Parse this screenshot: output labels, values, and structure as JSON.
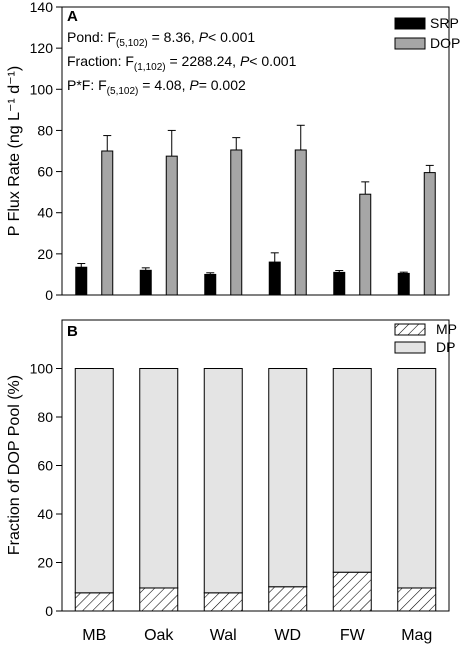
{
  "chart_data": [
    {
      "type": "bar",
      "panel": "A",
      "ylabel": "P Flux Rate (ng L⁻¹ d⁻¹)",
      "ylim": [
        0,
        140
      ],
      "yticks": [
        0,
        20,
        40,
        60,
        80,
        100,
        120,
        140
      ],
      "categories": [
        "MB",
        "Oak",
        "Wal",
        "WD",
        "FW",
        "Mag"
      ],
      "series": [
        {
          "name": "SRP",
          "color": "#000000",
          "values": [
            13.5,
            12,
            10,
            16,
            11,
            10.5
          ],
          "errors": [
            1.8,
            1.2,
            0.8,
            4.5,
            0.9,
            0.6
          ]
        },
        {
          "name": "DOP",
          "color": "#a6a6a6",
          "values": [
            70,
            67.5,
            70.5,
            70.5,
            49,
            59.5
          ],
          "errors": [
            7.5,
            12.5,
            6,
            12,
            6,
            3.5
          ]
        }
      ],
      "legend_position": "top-right",
      "annotations": {
        "pond": {
          "prefix": "Pond: F",
          "sub": "(5,102)",
          "mid": " = 8.36, ",
          "p": "P",
          "suffix": "< 0.001"
        },
        "fraction": {
          "prefix": "Fraction: F",
          "sub": "(1,102)",
          "mid": " = 2288.24, ",
          "p": "P",
          "suffix": "< 0.001"
        },
        "interaction": {
          "prefix": "P*F: F",
          "sub": "(5,102)",
          "mid": " = 4.08, ",
          "p": "P",
          "suffix": "= 0.002"
        }
      }
    },
    {
      "type": "bar",
      "stacked": true,
      "panel": "B",
      "ylabel": "Fraction of DOP Pool (%)",
      "ylim": [
        0,
        120
      ],
      "yticks": [
        0,
        20,
        40,
        60,
        80,
        100
      ],
      "categories": [
        "MB",
        "Oak",
        "Wal",
        "WD",
        "FW",
        "Mag"
      ],
      "series": [
        {
          "name": "MP",
          "fill": "hatched",
          "values": [
            7.5,
            9.5,
            7.5,
            10,
            16,
            9.5
          ]
        },
        {
          "name": "DP",
          "color": "#e4e4e4",
          "values": [
            92.5,
            90.5,
            92.5,
            90,
            84,
            90.5
          ]
        }
      ],
      "legend_position": "top-right"
    }
  ]
}
